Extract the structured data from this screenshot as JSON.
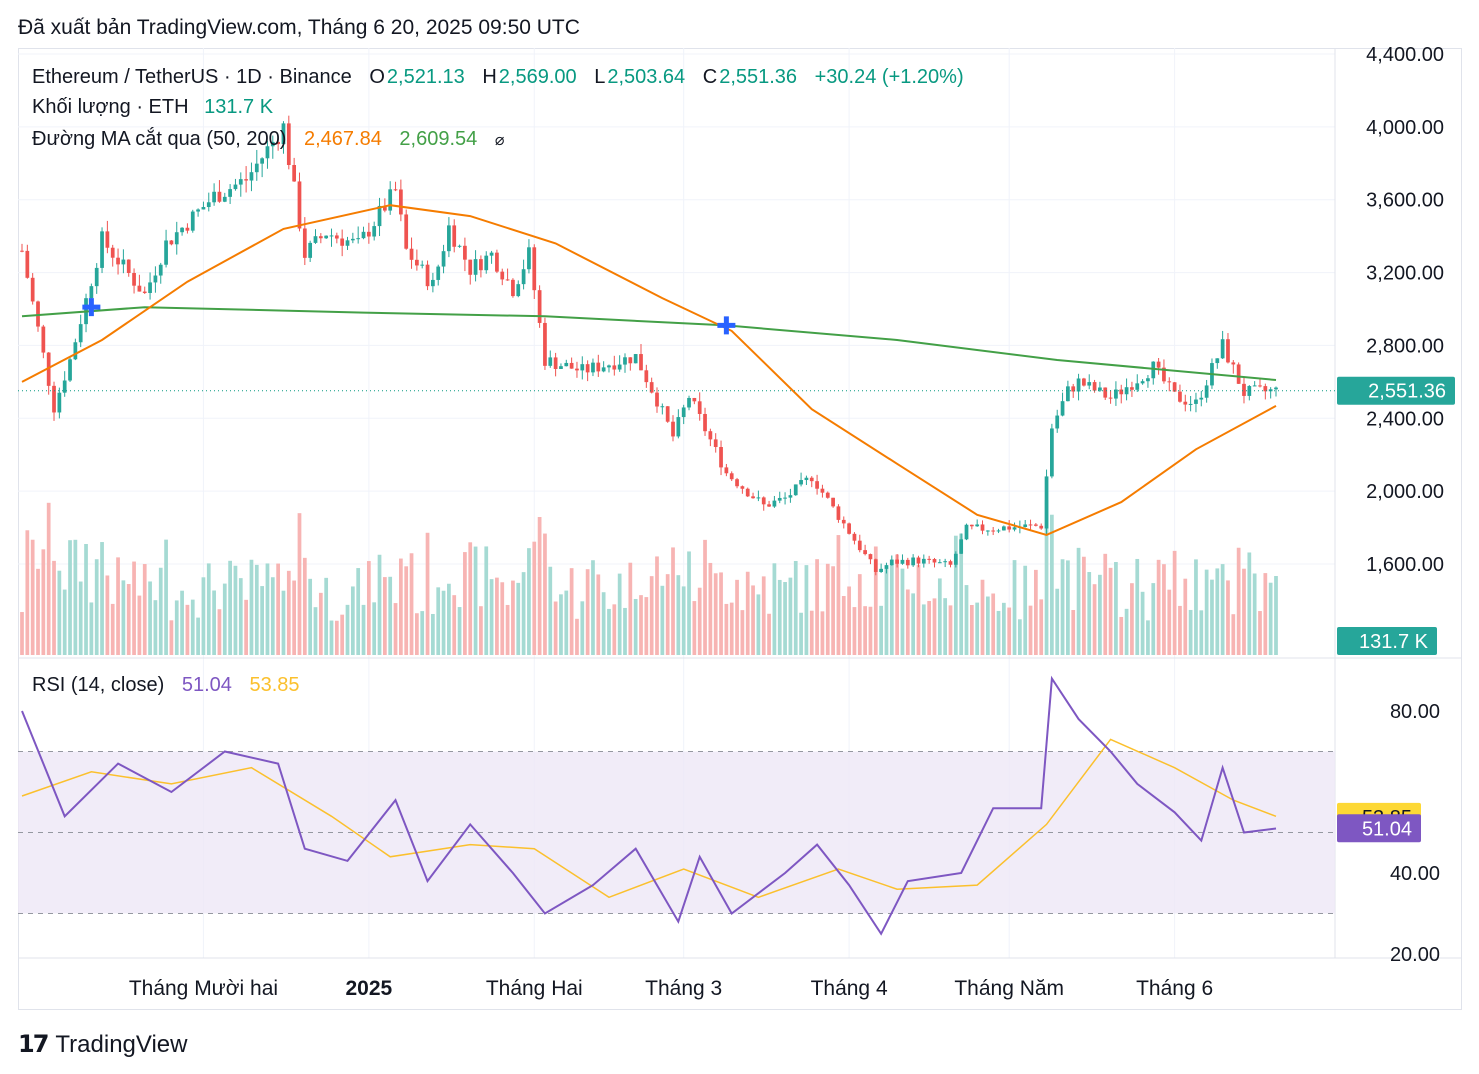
{
  "published": "Đã xuất bản TradingView.com, Tháng 6 20, 2025 09:50 UTC",
  "legend": {
    "symbol": "Ethereum / TetherUS · 1D · Binance",
    "o_label": "O",
    "o_value": "2,521.13",
    "h_label": "H",
    "h_value": "2,569.00",
    "l_label": "L",
    "l_value": "2,503.64",
    "c_label": "C",
    "c_value": "2,551.36",
    "change": "+30.24 (+1.20%)",
    "volume_label": "Khối lượng · ETH",
    "volume_value": "131.7 K",
    "ma_label": "Đường MA cắt qua (50, 200)",
    "ma50_value": "2,467.84",
    "ma200_value": "2,609.54",
    "ma_icon": "⌀",
    "rsi_label": "RSI (14, close)",
    "rsi_value": "51.04",
    "rsi_ma_value": "53.85"
  },
  "price_axis": {
    "ticks": [
      "4,400.00",
      "4,000.00",
      "3,600.00",
      "3,200.00",
      "2,800.00",
      "2,400.00",
      "2,000.00",
      "1,600.00"
    ],
    "last_price": "2,551.36",
    "volume_tag": "131.7 K"
  },
  "rsi_axis": {
    "ticks": [
      "80.00",
      "40.00",
      "20.00"
    ],
    "rsi_ma_tag": "53.85",
    "rsi_tag": "51.04",
    "band": [
      30,
      70
    ],
    "mid": 50
  },
  "time_axis": [
    "Tháng Mười hai",
    "2025",
    "Tháng Hai",
    "Tháng 3",
    "Tháng 4",
    "Tháng Năm",
    "Tháng 6"
  ],
  "branding": {
    "logo": "TradingView"
  },
  "colors": {
    "up": "#26a69a",
    "down": "#ef5350",
    "ma50": "#f57c00",
    "ma200": "#43a047",
    "rsi": "#7e57c2",
    "rsi_ma": "#fbc02d",
    "cross": "#2962ff"
  },
  "chart_data": {
    "type": "candlestick",
    "symbol": "Ethereum / TetherUS · 1D · Binance",
    "price_range": [
      1380,
      4420
    ],
    "rsi_range": [
      18,
      92
    ],
    "crosses": [
      {
        "date": "2024-11-10",
        "price": 3010
      },
      {
        "date": "2025-03-09",
        "price": 2910
      }
    ],
    "waypoints": [
      {
        "date": "2024-10-28",
        "close": 3320
      },
      {
        "date": "2024-11-03",
        "close": 2460
      },
      {
        "date": "2024-11-06",
        "close": 2720
      },
      {
        "date": "2024-11-12",
        "close": 3380
      },
      {
        "date": "2024-11-20",
        "close": 3080
      },
      {
        "date": "2024-11-24",
        "close": 3360
      },
      {
        "date": "2024-12-03",
        "close": 3620
      },
      {
        "date": "2024-12-09",
        "close": 3710
      },
      {
        "date": "2024-12-16",
        "close": 4000
      },
      {
        "date": "2024-12-20",
        "close": 3300
      },
      {
        "date": "2024-12-24",
        "close": 3420
      },
      {
        "date": "2024-12-30",
        "close": 3350
      },
      {
        "date": "2025-01-06",
        "close": 3650
      },
      {
        "date": "2025-01-08",
        "close": 3320
      },
      {
        "date": "2025-01-13",
        "close": 3130
      },
      {
        "date": "2025-01-16",
        "close": 3450
      },
      {
        "date": "2025-01-20",
        "close": 3220
      },
      {
        "date": "2025-01-24",
        "close": 3300
      },
      {
        "date": "2025-01-28",
        "close": 3110
      },
      {
        "date": "2025-01-31",
        "close": 3300
      },
      {
        "date": "2025-02-03",
        "close": 2720
      },
      {
        "date": "2025-02-10",
        "close": 2660
      },
      {
        "date": "2025-02-20",
        "close": 2740
      },
      {
        "date": "2025-02-24",
        "close": 2500
      },
      {
        "date": "2025-02-27",
        "close": 2300
      },
      {
        "date": "2025-03-02",
        "close": 2520
      },
      {
        "date": "2025-03-09",
        "close": 2100
      },
      {
        "date": "2025-03-16",
        "close": 1920
      },
      {
        "date": "2025-03-20",
        "close": 1960
      },
      {
        "date": "2025-03-25",
        "close": 2080
      },
      {
        "date": "2025-03-31",
        "close": 1820
      },
      {
        "date": "2025-04-06",
        "close": 1560
      },
      {
        "date": "2025-04-09",
        "close": 1610
      },
      {
        "date": "2025-04-14",
        "close": 1620
      },
      {
        "date": "2025-04-20",
        "close": 1590
      },
      {
        "date": "2025-04-23",
        "close": 1790
      },
      {
        "date": "2025-04-30",
        "close": 1800
      },
      {
        "date": "2025-05-07",
        "close": 1810
      },
      {
        "date": "2025-05-09",
        "close": 2350
      },
      {
        "date": "2025-05-12",
        "close": 2550
      },
      {
        "date": "2025-05-14",
        "close": 2600
      },
      {
        "date": "2025-05-20",
        "close": 2510
      },
      {
        "date": "2025-05-28",
        "close": 2680
      },
      {
        "date": "2025-06-01",
        "close": 2520
      },
      {
        "date": "2025-06-05",
        "close": 2480
      },
      {
        "date": "2025-06-10",
        "close": 2800
      },
      {
        "date": "2025-06-14",
        "close": 2540
      },
      {
        "date": "2025-06-20",
        "close": 2551
      }
    ],
    "ma50": [
      {
        "date": "2024-10-28",
        "value": 2600
      },
      {
        "date": "2024-11-12",
        "value": 2830
      },
      {
        "date": "2024-11-28",
        "value": 3150
      },
      {
        "date": "2024-12-16",
        "value": 3440
      },
      {
        "date": "2025-01-05",
        "value": 3570
      },
      {
        "date": "2025-01-20",
        "value": 3510
      },
      {
        "date": "2025-02-05",
        "value": 3360
      },
      {
        "date": "2025-02-25",
        "value": 3060
      },
      {
        "date": "2025-03-10",
        "value": 2880
      },
      {
        "date": "2025-03-25",
        "value": 2450
      },
      {
        "date": "2025-04-10",
        "value": 2150
      },
      {
        "date": "2025-04-25",
        "value": 1870
      },
      {
        "date": "2025-05-08",
        "value": 1760
      },
      {
        "date": "2025-05-22",
        "value": 1940
      },
      {
        "date": "2025-06-05",
        "value": 2230
      },
      {
        "date": "2025-06-20",
        "value": 2468
      }
    ],
    "ma200": [
      {
        "date": "2024-10-28",
        "value": 2960
      },
      {
        "date": "2024-11-20",
        "value": 3010
      },
      {
        "date": "2024-12-31",
        "value": 2980
      },
      {
        "date": "2025-02-03",
        "value": 2960
      },
      {
        "date": "2025-03-09",
        "value": 2910
      },
      {
        "date": "2025-04-10",
        "value": 2830
      },
      {
        "date": "2025-05-10",
        "value": 2720
      },
      {
        "date": "2025-06-20",
        "value": 2610
      }
    ],
    "rsi_points": [
      {
        "date": "2024-10-28",
        "value": 80
      },
      {
        "date": "2024-11-05",
        "value": 54
      },
      {
        "date": "2024-11-15",
        "value": 67
      },
      {
        "date": "2024-11-25",
        "value": 60
      },
      {
        "date": "2024-12-05",
        "value": 70
      },
      {
        "date": "2024-12-15",
        "value": 67
      },
      {
        "date": "2024-12-20",
        "value": 46
      },
      {
        "date": "2024-12-28",
        "value": 43
      },
      {
        "date": "2025-01-06",
        "value": 58
      },
      {
        "date": "2025-01-12",
        "value": 38
      },
      {
        "date": "2025-01-20",
        "value": 52
      },
      {
        "date": "2025-01-28",
        "value": 40
      },
      {
        "date": "2025-02-03",
        "value": 30
      },
      {
        "date": "2025-02-12",
        "value": 37
      },
      {
        "date": "2025-02-20",
        "value": 46
      },
      {
        "date": "2025-02-28",
        "value": 28
      },
      {
        "date": "2025-03-04",
        "value": 44
      },
      {
        "date": "2025-03-10",
        "value": 30
      },
      {
        "date": "2025-03-20",
        "value": 40
      },
      {
        "date": "2025-03-26",
        "value": 47
      },
      {
        "date": "2025-04-01",
        "value": 37
      },
      {
        "date": "2025-04-07",
        "value": 25
      },
      {
        "date": "2025-04-12",
        "value": 38
      },
      {
        "date": "2025-04-22",
        "value": 40
      },
      {
        "date": "2025-04-28",
        "value": 56
      },
      {
        "date": "2025-05-07",
        "value": 56
      },
      {
        "date": "2025-05-09",
        "value": 88
      },
      {
        "date": "2025-05-14",
        "value": 78
      },
      {
        "date": "2025-05-20",
        "value": 70
      },
      {
        "date": "2025-05-25",
        "value": 62
      },
      {
        "date": "2025-06-01",
        "value": 55
      },
      {
        "date": "2025-06-06",
        "value": 48
      },
      {
        "date": "2025-06-10",
        "value": 66
      },
      {
        "date": "2025-06-14",
        "value": 50
      },
      {
        "date": "2025-06-20",
        "value": 51
      }
    ],
    "rsi_ma_points": [
      {
        "date": "2024-10-28",
        "value": 59
      },
      {
        "date": "2024-11-10",
        "value": 65
      },
      {
        "date": "2024-11-25",
        "value": 62
      },
      {
        "date": "2024-12-10",
        "value": 66
      },
      {
        "date": "2024-12-25",
        "value": 54
      },
      {
        "date": "2025-01-05",
        "value": 44
      },
      {
        "date": "2025-01-20",
        "value": 47
      },
      {
        "date": "2025-02-01",
        "value": 46
      },
      {
        "date": "2025-02-15",
        "value": 34
      },
      {
        "date": "2025-03-01",
        "value": 41
      },
      {
        "date": "2025-03-15",
        "value": 34
      },
      {
        "date": "2025-03-30",
        "value": 41
      },
      {
        "date": "2025-04-10",
        "value": 36
      },
      {
        "date": "2025-04-25",
        "value": 37
      },
      {
        "date": "2025-05-08",
        "value": 52
      },
      {
        "date": "2025-05-20",
        "value": 73
      },
      {
        "date": "2025-06-01",
        "value": 66
      },
      {
        "date": "2025-06-12",
        "value": 58
      },
      {
        "date": "2025-06-20",
        "value": 54
      }
    ],
    "volume_range": [
      0,
      520000
    ]
  }
}
